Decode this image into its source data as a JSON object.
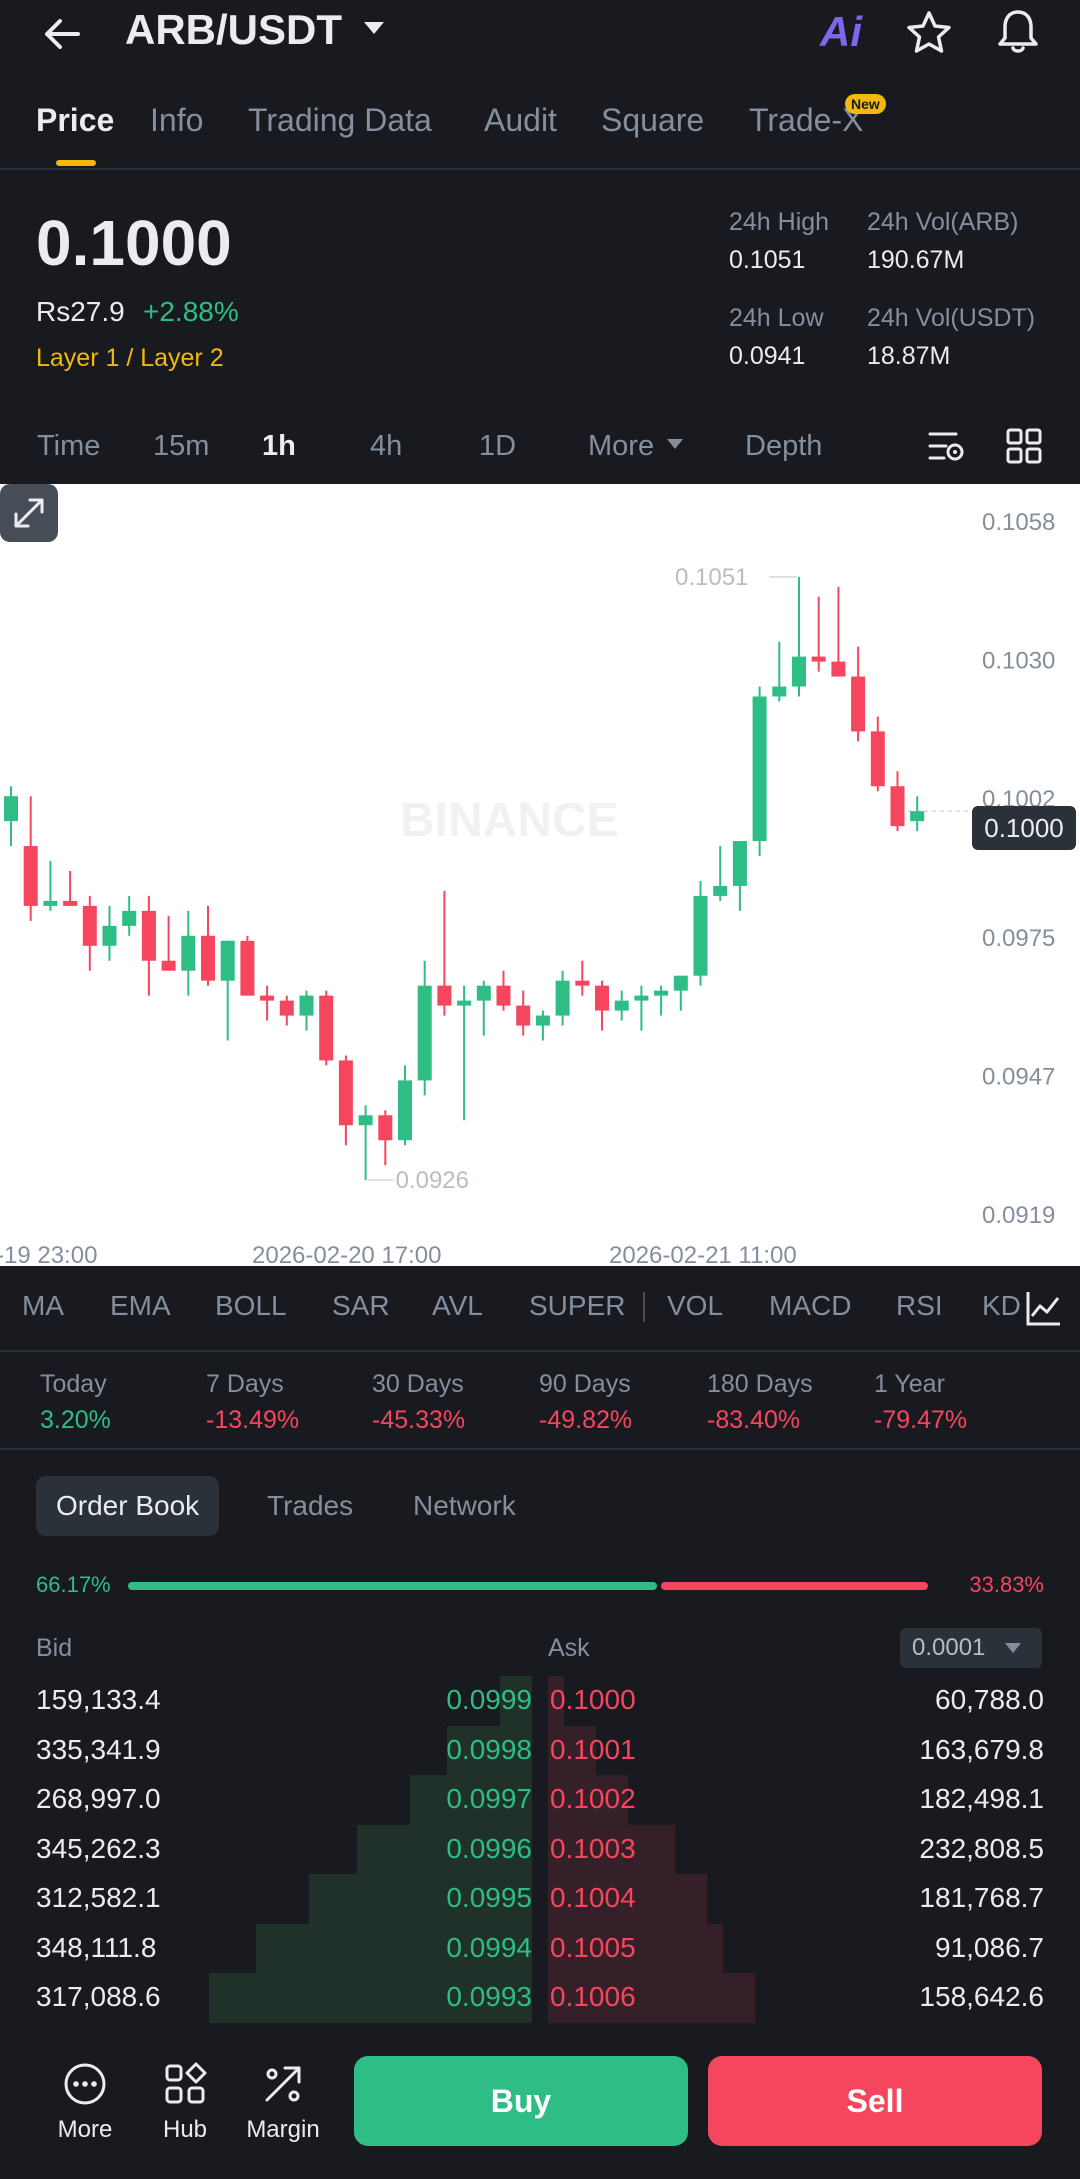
{
  "header": {
    "pair": "ARB/USDT",
    "ai_label": "Ai"
  },
  "tabs": [
    {
      "label": "Price"
    },
    {
      "label": "Info"
    },
    {
      "label": "Trading Data"
    },
    {
      "label": "Audit"
    },
    {
      "label": "Square"
    },
    {
      "label": "Trade-X",
      "badge": "New"
    }
  ],
  "price": {
    "last": "0.1000",
    "fiat": "Rs27.9",
    "change": "+2.88%",
    "category": "Layer 1 / Layer 2",
    "stats": {
      "high_label": "24h High",
      "high_value": "0.1051",
      "low_label": "24h Low",
      "low_value": "0.0941",
      "vol_base_label": "24h Vol(ARB)",
      "vol_base_value": "190.67M",
      "vol_quote_label": "24h Vol(USDT)",
      "vol_quote_value": "18.87M"
    }
  },
  "intervals": [
    "Time",
    "15m",
    "1h",
    "4h",
    "1D",
    "More",
    "Depth"
  ],
  "active_interval": "1h",
  "chart_data": {
    "type": "candlestick",
    "interval": "1h",
    "y_ticks": [
      "0.1058",
      "0.1030",
      "0.1002",
      "0.0975",
      "0.0947",
      "0.0919"
    ],
    "y_range": [
      0.0919,
      0.1058
    ],
    "x_ticks": [
      "-19 23:00",
      "2026-02-20 17:00",
      "2026-02-21 11:00"
    ],
    "high_marker": "0.1051",
    "low_marker": "0.0926",
    "current_price": "0.1000",
    "candles": [
      [
        0.0998,
        0.1005,
        0.0993,
        0.1003
      ],
      [
        0.0993,
        0.1003,
        0.0978,
        0.0981
      ],
      [
        0.0981,
        0.099,
        0.098,
        0.0982
      ],
      [
        0.0982,
        0.0988,
        0.0981,
        0.0981
      ],
      [
        0.0981,
        0.0983,
        0.0968,
        0.0973
      ],
      [
        0.0973,
        0.0981,
        0.097,
        0.0977
      ],
      [
        0.0977,
        0.0983,
        0.0975,
        0.098
      ],
      [
        0.098,
        0.0983,
        0.0963,
        0.097
      ],
      [
        0.097,
        0.0979,
        0.0968,
        0.0968
      ],
      [
        0.0968,
        0.098,
        0.0963,
        0.0975
      ],
      [
        0.0975,
        0.0981,
        0.0965,
        0.0966
      ],
      [
        0.0966,
        0.0974,
        0.0954,
        0.0974
      ],
      [
        0.0974,
        0.0975,
        0.0963,
        0.0963
      ],
      [
        0.0963,
        0.0965,
        0.0958,
        0.0962
      ],
      [
        0.0962,
        0.0963,
        0.0957,
        0.0959
      ],
      [
        0.0959,
        0.0964,
        0.0956,
        0.0963
      ],
      [
        0.0963,
        0.0964,
        0.0949,
        0.095
      ],
      [
        0.095,
        0.0951,
        0.0933,
        0.0937
      ],
      [
        0.0937,
        0.0941,
        0.0926,
        0.0939
      ],
      [
        0.0939,
        0.094,
        0.0929,
        0.0934
      ],
      [
        0.0934,
        0.0949,
        0.0933,
        0.0946
      ],
      [
        0.0946,
        0.097,
        0.0943,
        0.0965
      ],
      [
        0.0965,
        0.0984,
        0.0959,
        0.0961
      ],
      [
        0.0961,
        0.0965,
        0.0938,
        0.0962
      ],
      [
        0.0962,
        0.0966,
        0.0955,
        0.0965
      ],
      [
        0.0965,
        0.0968,
        0.096,
        0.0961
      ],
      [
        0.0961,
        0.0964,
        0.0955,
        0.0957
      ],
      [
        0.0957,
        0.096,
        0.0954,
        0.0959
      ],
      [
        0.0959,
        0.0968,
        0.0957,
        0.0966
      ],
      [
        0.0966,
        0.097,
        0.0963,
        0.0965
      ],
      [
        0.0965,
        0.0966,
        0.0956,
        0.096
      ],
      [
        0.096,
        0.0964,
        0.0958,
        0.0962
      ],
      [
        0.0962,
        0.0965,
        0.0956,
        0.0963
      ],
      [
        0.0963,
        0.0965,
        0.0959,
        0.0964
      ],
      [
        0.0964,
        0.0967,
        0.096,
        0.0967
      ],
      [
        0.0967,
        0.0986,
        0.0965,
        0.0983
      ],
      [
        0.0983,
        0.0993,
        0.0982,
        0.0985
      ],
      [
        0.0985,
        0.0994,
        0.098,
        0.0994
      ],
      [
        0.0994,
        0.1025,
        0.0991,
        0.1023
      ],
      [
        0.1023,
        0.1034,
        0.1022,
        0.1025
      ],
      [
        0.1025,
        0.1047,
        0.1023,
        0.1031
      ],
      [
        0.1031,
        0.1043,
        0.1028,
        0.103
      ],
      [
        0.103,
        0.1045,
        0.1027,
        0.1027
      ],
      [
        0.1027,
        0.1033,
        0.1014,
        0.1016
      ],
      [
        0.1016,
        0.1019,
        0.1004,
        0.1005
      ],
      [
        0.1005,
        0.1008,
        0.0996,
        0.0997
      ],
      [
        0.0998,
        0.1003,
        0.0996,
        0.1
      ]
    ]
  },
  "watermark": "BINANCE",
  "indicators": [
    "MA",
    "EMA",
    "BOLL",
    "SAR",
    "AVL",
    "SUPER",
    "VOL",
    "MACD",
    "RSI",
    "KD"
  ],
  "performance": [
    {
      "label": "Today",
      "value": "3.20%",
      "dir": "up"
    },
    {
      "label": "7 Days",
      "value": "-13.49%",
      "dir": "down"
    },
    {
      "label": "30 Days",
      "value": "-45.33%",
      "dir": "down"
    },
    {
      "label": "90 Days",
      "value": "-49.82%",
      "dir": "down"
    },
    {
      "label": "180 Days",
      "value": "-83.40%",
      "dir": "down"
    },
    {
      "label": "1 Year",
      "value": "-79.47%",
      "dir": "down"
    }
  ],
  "orderbook": {
    "tabs": [
      "Order Book",
      "Trades",
      "Network"
    ],
    "bid_ratio": "66.17%",
    "ask_ratio": "33.83%",
    "bid_header": "Bid",
    "ask_header": "Ask",
    "precision": "0.0001",
    "rows": [
      {
        "bid_qty": "159,133.4",
        "bid_price": "0.0999",
        "ask_price": "0.1000",
        "ask_qty": "60,788.0",
        "bid_depth": 0.06,
        "ask_depth": 0.03
      },
      {
        "bid_qty": "335,341.9",
        "bid_price": "0.0998",
        "ask_price": "0.1001",
        "ask_qty": "163,679.8",
        "bid_depth": 0.16,
        "ask_depth": 0.09
      },
      {
        "bid_qty": "268,997.0",
        "bid_price": "0.0997",
        "ask_price": "0.1002",
        "ask_qty": "182,498.1",
        "bid_depth": 0.23,
        "ask_depth": 0.15
      },
      {
        "bid_qty": "345,262.3",
        "bid_price": "0.0996",
        "ask_price": "0.1003",
        "ask_qty": "232,808.5",
        "bid_depth": 0.33,
        "ask_depth": 0.24
      },
      {
        "bid_qty": "312,582.1",
        "bid_price": "0.0995",
        "ask_price": "0.1004",
        "ask_qty": "181,768.7",
        "bid_depth": 0.42,
        "ask_depth": 0.3
      },
      {
        "bid_qty": "348,111.8",
        "bid_price": "0.0994",
        "ask_price": "0.1005",
        "ask_qty": "91,086.7",
        "bid_depth": 0.52,
        "ask_depth": 0.33
      },
      {
        "bid_qty": "317,088.6",
        "bid_price": "0.0993",
        "ask_price": "0.1006",
        "ask_qty": "158,642.6",
        "bid_depth": 0.61,
        "ask_depth": 0.39
      }
    ]
  },
  "bottom_nav": {
    "more_label": "More",
    "hub_label": "Hub",
    "margin_label": "Margin",
    "buy_label": "Buy",
    "sell_label": "Sell"
  },
  "colors": {
    "up": "#2ebd85",
    "down": "#f6465d",
    "accent": "#f0b90b",
    "background": "#181a20"
  }
}
